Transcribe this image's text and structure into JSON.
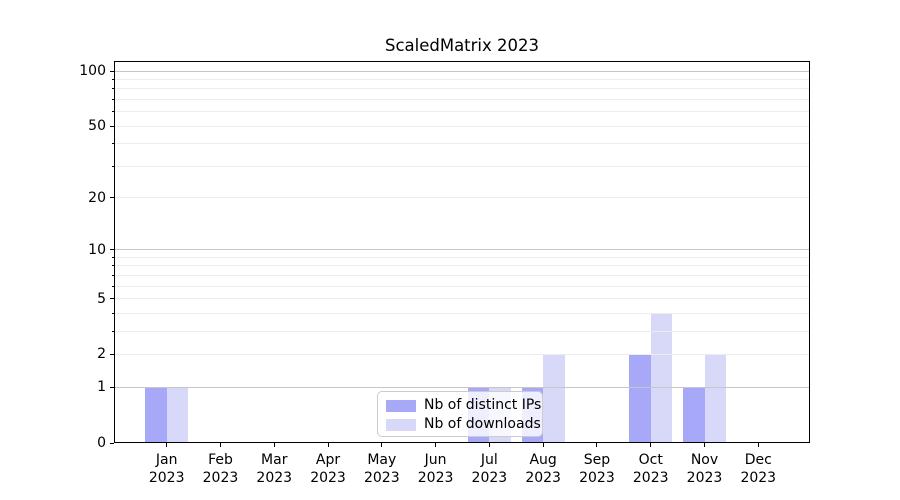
{
  "title": "ScaledMatrix 2023",
  "legend": {
    "items": [
      {
        "label": "Nb of distinct IPs",
        "color": "#a8a8f8"
      },
      {
        "label": "Nb of downloads",
        "color": "#d8d8f8"
      }
    ]
  },
  "chart_data": {
    "type": "bar",
    "title": "ScaledMatrix 2023",
    "x_categories": [
      "Jan 2023",
      "Feb 2023",
      "Mar 2023",
      "Apr 2023",
      "May 2023",
      "Jun 2023",
      "Jul 2023",
      "Aug 2023",
      "Sep 2023",
      "Oct 2023",
      "Nov 2023",
      "Dec 2023"
    ],
    "series": [
      {
        "name": "Nb of distinct IPs",
        "color": "#a8a8f8",
        "values": [
          1,
          0,
          0,
          0,
          0,
          0,
          1,
          1,
          0,
          2,
          1,
          0
        ]
      },
      {
        "name": "Nb of downloads",
        "color": "#d8d8f8",
        "values": [
          1,
          0,
          0,
          0,
          0,
          0,
          1,
          2,
          0,
          4,
          2,
          0
        ]
      }
    ],
    "yscale": "log10(1+y)",
    "ylim": [
      0,
      113
    ],
    "yticks_labeled": [
      "0",
      "1",
      "2",
      "5",
      "10",
      "20",
      "50",
      "100"
    ],
    "grid_major": [
      1,
      10,
      100
    ],
    "grid_minor": [
      2,
      3,
      4,
      5,
      6,
      7,
      8,
      9,
      20,
      30,
      40,
      50,
      60,
      70,
      80,
      90
    ],
    "grid_on": true,
    "legend_position": "inside lower-center",
    "colors": {
      "grid_major": "#c6c6c6",
      "grid_minor": "#ececec",
      "axis": "#000000",
      "background": "#ffffff"
    }
  }
}
